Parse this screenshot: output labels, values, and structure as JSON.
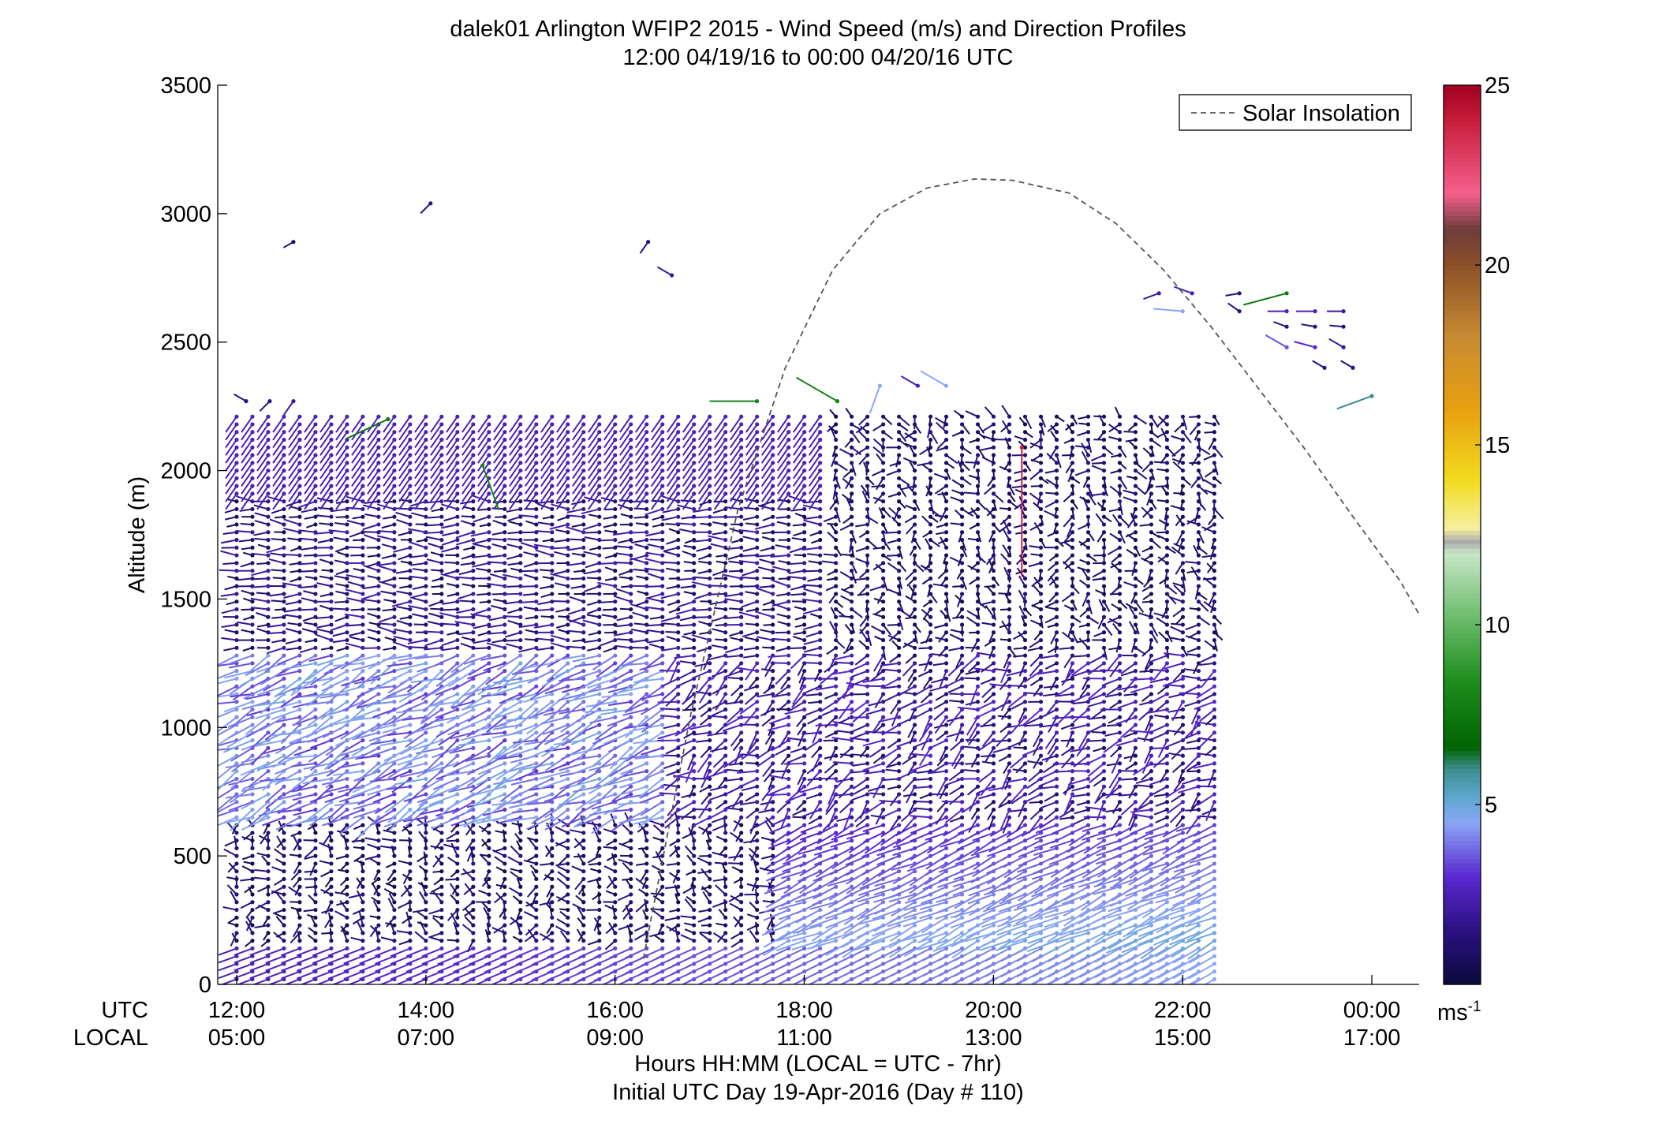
{
  "chart_data": {
    "type": "wind-barb-profile",
    "title_line1": "dalek01 Arlington WFIP2 2015 - Wind Speed (m/s) and Direction Profiles",
    "title_line2": "12:00 04/19/16 to 00:00 04/20/16  UTC",
    "ylabel": "Altitude (m)",
    "ylim": [
      0,
      3500
    ],
    "yticks": [
      "0",
      "500",
      "1000",
      "1500",
      "2000",
      "2500",
      "3000",
      "3500"
    ],
    "xlim_hours": [
      11.8,
      24.5
    ],
    "xtick_hours": [
      12,
      14,
      16,
      18,
      20,
      22,
      24
    ],
    "utc_row_label": "UTC",
    "local_row_label": "LOCAL",
    "utc_ticks": [
      "12:00",
      "14:00",
      "16:00",
      "18:00",
      "20:00",
      "22:00",
      "00:00"
    ],
    "local_ticks": [
      "05:00",
      "07:00",
      "09:00",
      "11:00",
      "13:00",
      "15:00",
      "17:00"
    ],
    "xlabel_line1": "Hours HH:MM  (LOCAL = UTC - 7hr)",
    "xlabel_line2": "Initial UTC Day 19-Apr-2016 (Day # 110)",
    "legend": {
      "label": "Solar Insolation",
      "placement": "top-right",
      "line_style": "dashed",
      "color": "#555555"
    },
    "colorbar": {
      "range": [
        0,
        25
      ],
      "tick_labels": [
        "5",
        "10",
        "15",
        "20",
        "25"
      ],
      "tick_values": [
        5,
        10,
        15,
        20,
        25
      ],
      "unit_base": "ms",
      "unit_exp": "-1",
      "stops": [
        {
          "v": 0,
          "c": "#0a0a3c"
        },
        {
          "v": 1.5,
          "c": "#2a1080"
        },
        {
          "v": 3,
          "c": "#5a28d0"
        },
        {
          "v": 4.5,
          "c": "#8aa6f5"
        },
        {
          "v": 5.2,
          "c": "#5fa8d0"
        },
        {
          "v": 6,
          "c": "#3c8c8c"
        },
        {
          "v": 6.6,
          "c": "#006400"
        },
        {
          "v": 8.5,
          "c": "#1f8f1f"
        },
        {
          "v": 10.5,
          "c": "#7ac47a"
        },
        {
          "v": 12,
          "c": "#c8e6c8"
        },
        {
          "v": 12.3,
          "c": "#aaaaaa"
        },
        {
          "v": 12.7,
          "c": "#f5f0a0"
        },
        {
          "v": 14,
          "c": "#f2dc1e"
        },
        {
          "v": 16,
          "c": "#e8a010"
        },
        {
          "v": 18,
          "c": "#c88c32"
        },
        {
          "v": 20,
          "c": "#8c5028"
        },
        {
          "v": 21,
          "c": "#6e3c3c"
        },
        {
          "v": 22,
          "c": "#f5608c"
        },
        {
          "v": 24,
          "c": "#c81e3c"
        },
        {
          "v": 25,
          "c": "#a00020"
        }
      ]
    },
    "solar_insolation_curve": {
      "hours": [
        16.3,
        16.8,
        17.3,
        17.8,
        18.3,
        18.8,
        19.3,
        19.8,
        20.2,
        20.8,
        21.3,
        21.8,
        22.3,
        22.8,
        23.3,
        23.8,
        24.3,
        24.5
      ],
      "altitude_m": [
        100,
        1050,
        1850,
        2400,
        2780,
        3000,
        3100,
        3135,
        3130,
        3080,
        2960,
        2780,
        2560,
        2320,
        2080,
        1820,
        1570,
        1440
      ]
    },
    "profiles": {
      "time_start_hour": 12.0,
      "time_step_hours": 0.1667,
      "time_count": 63,
      "altitude_start_m": 20,
      "altitude_step_m": 30,
      "altitude_count": 74,
      "barb_length_scale": 6.5,
      "note_speed_m_s_regimes": [
        {
          "alt_range": [
            0,
            650
          ],
          "speed": 2.5,
          "direction_deg": 255
        },
        {
          "alt_range": [
            650,
            1300
          ],
          "speed": 4.0,
          "direction_deg": 245
        },
        {
          "alt_range": [
            1300,
            2200
          ],
          "speed": 1.5,
          "direction_deg": 270
        },
        {
          "alt_range": [
            2200,
            2300
          ],
          "speed": 2.0,
          "direction_deg": 225
        }
      ]
    },
    "upper_isolated_barbs": [
      {
        "hour": 12.6,
        "alt": 2890,
        "speed": 1.0,
        "dir": 240
      },
      {
        "hour": 14.05,
        "alt": 3040,
        "speed": 1.5,
        "dir": 225
      },
      {
        "hour": 16.35,
        "alt": 2890,
        "speed": 1.5,
        "dir": 215
      },
      {
        "hour": 16.6,
        "alt": 2760,
        "speed": 2.0,
        "dir": 300
      },
      {
        "hour": 21.75,
        "alt": 2690,
        "speed": 2.0,
        "dir": 250
      },
      {
        "hour": 22.1,
        "alt": 2690,
        "speed": 2.5,
        "dir": 290
      },
      {
        "hour": 22.0,
        "alt": 2620,
        "speed": 4.5,
        "dir": 275
      },
      {
        "hour": 22.6,
        "alt": 2690,
        "speed": 1.5,
        "dir": 260
      },
      {
        "hour": 22.6,
        "alt": 2620,
        "speed": 1.5,
        "dir": 305
      },
      {
        "hour": 23.1,
        "alt": 2690,
        "speed": 7.5,
        "dir": 255
      },
      {
        "hour": 23.1,
        "alt": 2620,
        "speed": 2.5,
        "dir": 270
      },
      {
        "hour": 23.4,
        "alt": 2620,
        "speed": 2.5,
        "dir": 270
      },
      {
        "hour": 23.7,
        "alt": 2620,
        "speed": 2.0,
        "dir": 270
      },
      {
        "hour": 23.1,
        "alt": 2480,
        "speed": 3.5,
        "dir": 300
      },
      {
        "hour": 23.4,
        "alt": 2480,
        "speed": 3.0,
        "dir": 285
      },
      {
        "hour": 23.7,
        "alt": 2480,
        "speed": 2.0,
        "dir": 300
      },
      {
        "hour": 23.1,
        "alt": 2560,
        "speed": 1.5,
        "dir": 290
      },
      {
        "hour": 23.4,
        "alt": 2560,
        "speed": 1.5,
        "dir": 280
      },
      {
        "hour": 23.7,
        "alt": 2560,
        "speed": 1.5,
        "dir": 275
      },
      {
        "hour": 23.5,
        "alt": 2400,
        "speed": 1.5,
        "dir": 300
      },
      {
        "hour": 23.8,
        "alt": 2400,
        "speed": 1.5,
        "dir": 300
      },
      {
        "hour": 12.1,
        "alt": 2270,
        "speed": 1.5,
        "dir": 300
      },
      {
        "hour": 12.35,
        "alt": 2270,
        "speed": 1.5,
        "dir": 225
      },
      {
        "hour": 12.6,
        "alt": 2270,
        "speed": 2.0,
        "dir": 215
      },
      {
        "hour": 18.8,
        "alt": 2330,
        "speed": 4.5,
        "dir": 200
      },
      {
        "hour": 19.2,
        "alt": 2330,
        "speed": 2.5,
        "dir": 300
      },
      {
        "hour": 19.5,
        "alt": 2330,
        "speed": 4.5,
        "dir": 300
      },
      {
        "hour": 13.6,
        "alt": 2200,
        "speed": 7.5,
        "dir": 245
      },
      {
        "hour": 14.6,
        "alt": 2020,
        "speed": 8.0,
        "dir": 160
      },
      {
        "hour": 17.5,
        "alt": 2270,
        "speed": 8.0,
        "dir": 270
      },
      {
        "hour": 18.35,
        "alt": 2270,
        "speed": 8.0,
        "dir": 300
      },
      {
        "hour": 20.3,
        "alt": 2090,
        "speed": 24.0,
        "dir": 180
      },
      {
        "hour": 24.0,
        "alt": 2290,
        "speed": 6.0,
        "dir": 250
      }
    ]
  }
}
